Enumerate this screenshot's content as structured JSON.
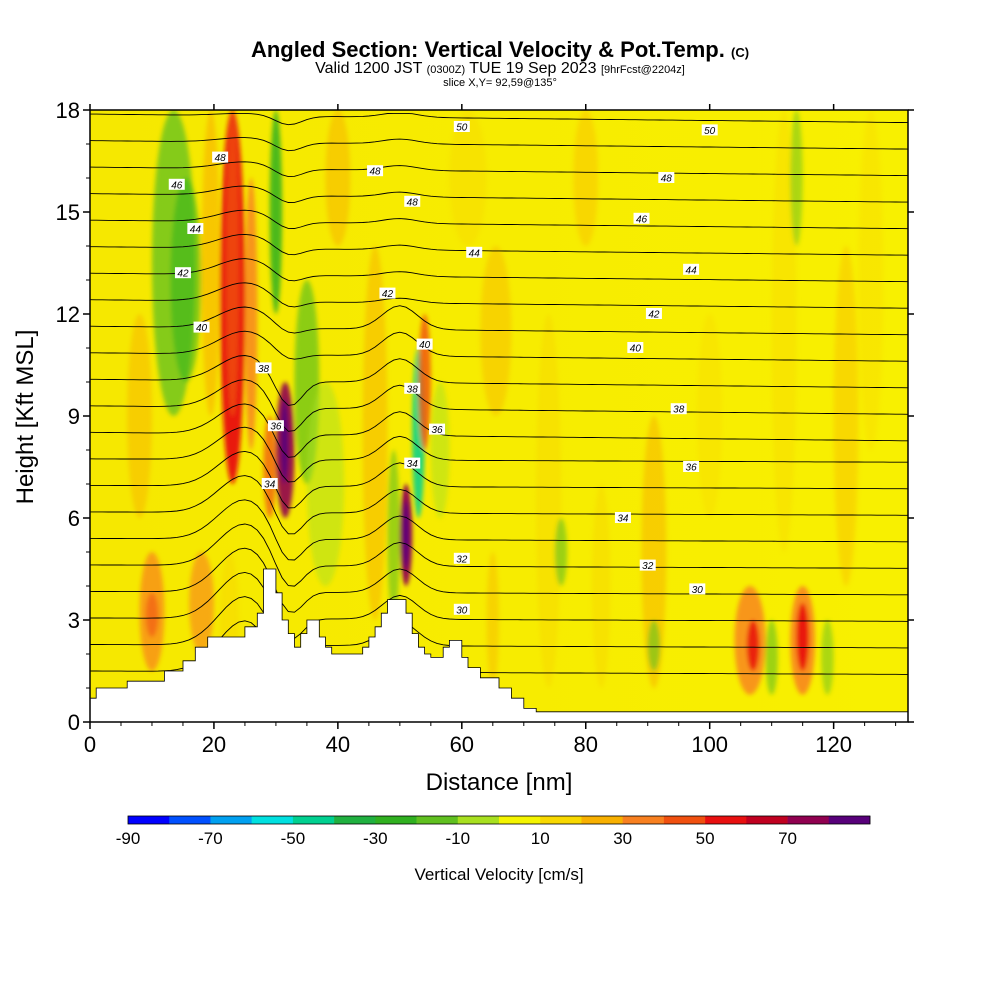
{
  "header": {
    "title_main": "Angled Section: Vertical Velocity & Pot.Temp.",
    "title_mark": "(C)",
    "valid_prefix": "Valid 1200 JST",
    "valid_zulu": "(0300Z)",
    "valid_date": "TUE 19 Sep 2023",
    "valid_fcst": "[9hrFcst@2204z]",
    "slice": "slice X,Y= 92,59@135°"
  },
  "chart_data": {
    "type": "heatmap",
    "xlabel": "Distance [nm]",
    "ylabel": "Height [Kft MSL]",
    "xlim": [
      0,
      132
    ],
    "ylim": [
      0,
      18
    ],
    "x_ticks": [
      "0",
      "20",
      "40",
      "60",
      "80",
      "100",
      "120"
    ],
    "y_ticks": [
      "0",
      "3",
      "6",
      "9",
      "12",
      "15",
      "18"
    ],
    "colorbar": {
      "label": "Vertical Velocity [cm/s]",
      "tick_labels": [
        "-90",
        "-70",
        "-50",
        "-30",
        "-10",
        "10",
        "30",
        "50",
        "70"
      ],
      "levels": [
        -90,
        -80,
        -70,
        -60,
        -50,
        -40,
        -30,
        -20,
        -10,
        0,
        10,
        20,
        30,
        40,
        50,
        60,
        70,
        80
      ],
      "colors": [
        "#0000ff",
        "#0050ff",
        "#00a0f0",
        "#00e0e0",
        "#00d090",
        "#20b040",
        "#30b020",
        "#60c020",
        "#a8e020",
        "#f4f400",
        "#f8d800",
        "#f8b000",
        "#f88020",
        "#f05010",
        "#e81010",
        "#c00020",
        "#900050",
        "#58007a"
      ]
    },
    "terrain_profile": {
      "x": [
        0,
        1,
        6,
        12,
        15,
        17,
        19,
        24,
        25,
        27,
        28,
        29,
        30,
        31,
        32,
        33,
        34,
        35,
        36,
        37,
        38,
        39,
        40,
        43,
        44,
        45,
        46,
        47,
        48,
        49,
        50,
        51,
        52,
        53,
        54,
        55,
        56,
        57,
        58,
        59,
        60,
        61,
        62,
        63,
        66,
        68,
        70,
        72,
        75,
        132
      ],
      "height_kft": [
        0.7,
        1,
        1.2,
        1.5,
        1.8,
        2.2,
        2.5,
        2.5,
        2.8,
        3.2,
        4.5,
        4.5,
        3.8,
        3.0,
        2.6,
        2.2,
        2.6,
        3.0,
        3.0,
        2.5,
        2.2,
        2.0,
        2.0,
        2.0,
        2.2,
        2.5,
        2.8,
        3.2,
        3.6,
        3.6,
        3.6,
        3.2,
        2.6,
        2.2,
        2.0,
        1.9,
        1.9,
        2.2,
        2.4,
        2.4,
        1.9,
        1.6,
        1.6,
        1.3,
        1.0,
        0.7,
        0.4,
        0.3,
        0.3,
        0.3
      ]
    },
    "contour_labels": [
      {
        "text": "50",
        "x": 60,
        "y": 17.5
      },
      {
        "text": "50",
        "x": 100,
        "y": 17.4
      },
      {
        "text": "48",
        "x": 21,
        "y": 16.6
      },
      {
        "text": "48",
        "x": 46,
        "y": 16.2
      },
      {
        "text": "48",
        "x": 93,
        "y": 16.0
      },
      {
        "text": "48",
        "x": 52,
        "y": 15.3
      },
      {
        "text": "46",
        "x": 14,
        "y": 15.8
      },
      {
        "text": "46",
        "x": 89,
        "y": 14.8
      },
      {
        "text": "44",
        "x": 17,
        "y": 14.5
      },
      {
        "text": "44",
        "x": 62,
        "y": 13.8
      },
      {
        "text": "44",
        "x": 97,
        "y": 13.3
      },
      {
        "text": "42",
        "x": 15,
        "y": 13.2
      },
      {
        "text": "42",
        "x": 48,
        "y": 12.6
      },
      {
        "text": "42",
        "x": 91,
        "y": 12.0
      },
      {
        "text": "40",
        "x": 18,
        "y": 11.6
      },
      {
        "text": "40",
        "x": 54,
        "y": 11.1
      },
      {
        "text": "40",
        "x": 88,
        "y": 11.0
      },
      {
        "text": "38",
        "x": 28,
        "y": 10.4
      },
      {
        "text": "38",
        "x": 52,
        "y": 9.8
      },
      {
        "text": "38",
        "x": 95,
        "y": 9.2
      },
      {
        "text": "36",
        "x": 30,
        "y": 8.7
      },
      {
        "text": "36",
        "x": 56,
        "y": 8.6
      },
      {
        "text": "36",
        "x": 97,
        "y": 7.5
      },
      {
        "text": "34",
        "x": 29,
        "y": 7.0
      },
      {
        "text": "34",
        "x": 52,
        "y": 7.6
      },
      {
        "text": "34",
        "x": 86,
        "y": 6.0
      },
      {
        "text": "32",
        "x": 60,
        "y": 4.8
      },
      {
        "text": "32",
        "x": 90,
        "y": 4.6
      },
      {
        "text": "30",
        "x": 60,
        "y": 3.3
      },
      {
        "text": "30",
        "x": 98,
        "y": 3.9
      }
    ]
  }
}
